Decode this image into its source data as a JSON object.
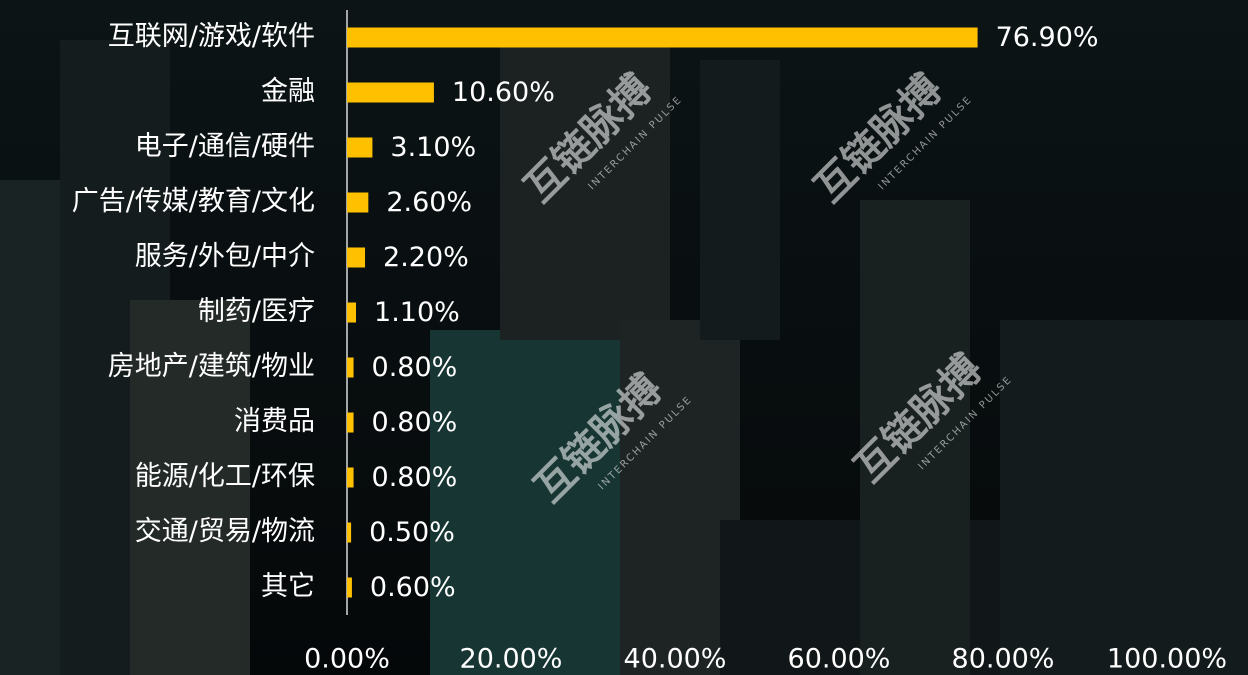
{
  "chart_data": {
    "type": "barh",
    "categories": [
      "互联网/游戏/软件",
      "金融",
      "电子/通信/硬件",
      "广告/传媒/教育/文化",
      "服务/外包/中介",
      "制药/医疗",
      "房地产/建筑/物业",
      "消费品",
      "能源/化工/环保",
      "交通/贸易/物流",
      "其它"
    ],
    "values": [
      76.9,
      10.6,
      3.1,
      2.6,
      2.2,
      1.1,
      0.8,
      0.8,
      0.8,
      0.5,
      0.6
    ],
    "value_labels": [
      "76.90%",
      "10.60%",
      "3.10%",
      "2.60%",
      "2.20%",
      "1.10%",
      "0.80%",
      "0.80%",
      "0.80%",
      "0.50%",
      "0.60%"
    ],
    "color": "#ffc000",
    "xlim": [
      0,
      100
    ],
    "xticks": [
      {
        "value": 0,
        "label": "0.00%"
      },
      {
        "value": 20,
        "label": "20.00%"
      },
      {
        "value": 40,
        "label": "40.00%"
      },
      {
        "value": 60,
        "label": "60.00%"
      },
      {
        "value": 80,
        "label": "80.00%"
      },
      {
        "value": 100,
        "label": "100.00%"
      }
    ],
    "grid": false,
    "watermark": "互链脉搏",
    "watermark_sub": "INTERCHAIN PULSE"
  }
}
